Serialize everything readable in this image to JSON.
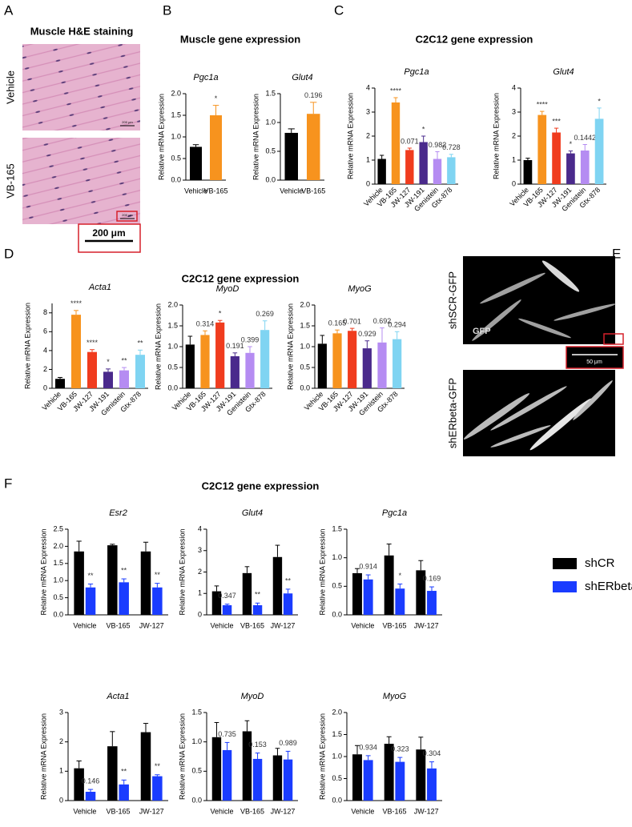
{
  "panels": {
    "A": {
      "label": "A",
      "title": "Muscle H&E staining",
      "row_labels": [
        "Vehicle",
        "VB-165"
      ],
      "scale_bar": "200 μm"
    },
    "B": {
      "label": "B",
      "title": "Muscle gene expression"
    },
    "C": {
      "label": "C",
      "title": "C2C12 gene expression"
    },
    "D": {
      "label": "D",
      "title": "C2C12 gene expression"
    },
    "E": {
      "label": "E",
      "row_labels": [
        "shSCR-GFP",
        "shERbeta-GFP"
      ],
      "channel": "GFP",
      "scale_bar": "50 μm"
    },
    "F": {
      "label": "F",
      "title": "C2C12 gene expression"
    }
  },
  "chart_data": [
    {
      "type": "bar",
      "title": "Pgc1a",
      "y_label": "Relative mRNA Expression",
      "categories": [
        "Vehicle",
        "VB-165"
      ],
      "values": [
        0.77,
        1.5
      ],
      "errors": [
        0.05,
        0.23
      ],
      "colors": [
        "#000000",
        "#f7931e"
      ],
      "annotations": [
        null,
        "*"
      ],
      "ylim": [
        0,
        2
      ],
      "yticks": [
        {
          "value": 0,
          "label": "0.0"
        },
        0.5,
        {
          "value": 1,
          "label": "1.0"
        },
        1.5,
        {
          "value": 2,
          "label": "2.0"
        }
      ]
    },
    {
      "type": "bar",
      "title": "Glut4",
      "y_label": "Relative mRNA Expression",
      "categories": [
        "Vehicle",
        "VB-165"
      ],
      "values": [
        0.82,
        1.15
      ],
      "errors": [
        0.07,
        0.2
      ],
      "colors": [
        "#000000",
        "#f7931e"
      ],
      "annotations": [
        null,
        "0.196"
      ],
      "ylim": [
        0,
        1.5
      ],
      "yticks": [
        {
          "value": 0,
          "label": "0.0"
        },
        0.5,
        {
          "value": 1,
          "label": "1.0"
        },
        1.5
      ]
    },
    {
      "type": "bar",
      "title": "Pgc1a",
      "y_label": "Relative mRNA Expression",
      "categories": [
        "Vehicle",
        "VB-165",
        "JW-127",
        "JW-191",
        "Genistein",
        "Gtx-878"
      ],
      "values": [
        1.05,
        3.4,
        1.42,
        1.75,
        1.05,
        1.12
      ],
      "errors": [
        0.15,
        0.2,
        0.08,
        0.25,
        0.3,
        0.12
      ],
      "colors": [
        "#000000",
        "#f7931e",
        "#f03c1e",
        "#4a2a8c",
        "#b58cf2",
        "#7fd4f2"
      ],
      "annotations": [
        null,
        "****",
        "0.071",
        "*",
        "0.982",
        "0.728"
      ],
      "ylim": [
        0,
        4
      ],
      "yticks": [
        0,
        1,
        2,
        3,
        4
      ]
    },
    {
      "type": "bar",
      "title": "Glut4",
      "y_label": "Relative mRNA Expression",
      "categories": [
        "Vehicle",
        "VB-165",
        "JW-127",
        "JW-191",
        "Genistein",
        "Gtx-878"
      ],
      "values": [
        1.0,
        2.88,
        2.15,
        1.28,
        1.4,
        2.72
      ],
      "errors": [
        0.08,
        0.15,
        0.18,
        0.1,
        0.25,
        0.45
      ],
      "colors": [
        "#000000",
        "#f7931e",
        "#f03c1e",
        "#4a2a8c",
        "#b58cf2",
        "#7fd4f2"
      ],
      "annotations": [
        null,
        "****",
        "***",
        "*",
        "0.1442",
        "*"
      ],
      "ylim": [
        0,
        4
      ],
      "yticks": [
        0,
        1,
        2,
        3,
        4
      ]
    },
    {
      "type": "bar",
      "title": "Acta1",
      "y_label": "Relative mRNA Expression",
      "categories": [
        "Vehicle",
        "VB-165",
        "JW-127",
        "JW-191",
        "Genistein",
        "Gtx-878"
      ],
      "values": [
        1.0,
        7.8,
        3.85,
        1.75,
        1.9,
        3.55
      ],
      "errors": [
        0.15,
        0.45,
        0.25,
        0.3,
        0.3,
        0.5
      ],
      "colors": [
        "#000000",
        "#f7931e",
        "#f03c1e",
        "#4a2a8c",
        "#b58cf2",
        "#7fd4f2"
      ],
      "annotations": [
        null,
        "****",
        "****",
        "*",
        "**",
        "**"
      ],
      "ylim": [
        0,
        9
      ],
      "yticks": [
        0,
        2,
        4,
        6,
        8
      ]
    },
    {
      "type": "bar",
      "title": "MyoD",
      "y_label": "Relative mRNA Expression",
      "categories": [
        "Vehicle",
        "VB-165",
        "JW-127",
        "JW-191",
        "Genistein",
        "Gtx-878"
      ],
      "values": [
        1.05,
        1.28,
        1.58,
        0.77,
        0.85,
        1.4
      ],
      "errors": [
        0.2,
        0.1,
        0.05,
        0.08,
        0.15,
        0.22
      ],
      "colors": [
        "#000000",
        "#f7931e",
        "#f03c1e",
        "#4a2a8c",
        "#b58cf2",
        "#7fd4f2"
      ],
      "annotations": [
        null,
        "0.314",
        "*",
        "0.191",
        "0.399",
        "0.269"
      ],
      "ylim": [
        0,
        2
      ],
      "yticks": [
        {
          "value": 0,
          "label": "0.0"
        },
        0.5,
        {
          "value": 1,
          "label": "1.0"
        },
        1.5,
        {
          "value": 2,
          "label": "2.0"
        }
      ]
    },
    {
      "type": "bar",
      "title": "MyoG",
      "y_label": "Relative mRNA Expression",
      "categories": [
        "Vehicle",
        "VB-165",
        "JW-127",
        "JW-191",
        "Genistein",
        "Gtx-878"
      ],
      "values": [
        1.07,
        1.32,
        1.38,
        0.96,
        1.1,
        1.18
      ],
      "errors": [
        0.2,
        0.08,
        0.06,
        0.18,
        0.35,
        0.18
      ],
      "colors": [
        "#000000",
        "#f7931e",
        "#f03c1e",
        "#4a2a8c",
        "#b58cf2",
        "#7fd4f2"
      ],
      "annotations": [
        null,
        "0.165",
        "0.701",
        "0.929",
        "0.692",
        "0.294"
      ],
      "ylim": [
        0,
        2
      ],
      "yticks": [
        {
          "value": 0,
          "label": "0.0"
        },
        0.5,
        {
          "value": 1,
          "label": "1.0"
        },
        1.5,
        {
          "value": 2,
          "label": "2.0"
        }
      ]
    },
    {
      "type": "bar",
      "title": "Esr2",
      "y_label": "Relative mRNA Expression",
      "categories": [
        "Vehicle",
        "VB-165",
        "JW-127"
      ],
      "series": [
        {
          "name": "shCR",
          "color": "#000000",
          "values": [
            1.85,
            2.03,
            1.85
          ],
          "errors": [
            0.3,
            0.03,
            0.27
          ]
        },
        {
          "name": "shERbeta",
          "color": "#1a3cff",
          "values": [
            0.8,
            0.95,
            0.8
          ],
          "errors": [
            0.1,
            0.1,
            0.12
          ]
        }
      ],
      "annotations": [
        "**",
        "**",
        "**"
      ],
      "ylim": [
        0,
        2.5
      ],
      "yticks": [
        {
          "value": 0,
          "label": "0.0"
        },
        0.5,
        {
          "value": 1,
          "label": "1.0"
        },
        1.5,
        {
          "value": 2,
          "label": "2.0"
        },
        2.5
      ]
    },
    {
      "type": "bar",
      "title": "Glut4",
      "y_label": "Relative mRNA Expression",
      "categories": [
        "Vehicle",
        "VB-165",
        "JW-127"
      ],
      "series": [
        {
          "name": "shCR",
          "color": "#000000",
          "values": [
            1.1,
            1.95,
            2.7
          ],
          "errors": [
            0.25,
            0.3,
            0.55
          ]
        },
        {
          "name": "shERbeta",
          "color": "#1a3cff",
          "values": [
            0.45,
            0.45,
            1.0
          ],
          "errors": [
            0.05,
            0.1,
            0.2
          ]
        }
      ],
      "annotations": [
        "0.347",
        "**",
        "**"
      ],
      "ylim": [
        0,
        4
      ],
      "yticks": [
        0,
        1,
        2,
        3,
        4
      ]
    },
    {
      "type": "bar",
      "title": "Pgc1a",
      "y_label": "Relative mRNA Expression",
      "categories": [
        "Vehicle",
        "VB-165",
        "JW-127"
      ],
      "series": [
        {
          "name": "shCR",
          "color": "#000000",
          "values": [
            0.73,
            1.04,
            0.78
          ],
          "errors": [
            0.08,
            0.2,
            0.17
          ]
        },
        {
          "name": "shERbeta",
          "color": "#1a3cff",
          "values": [
            0.62,
            0.46,
            0.42
          ],
          "errors": [
            0.08,
            0.08,
            0.07
          ]
        }
      ],
      "annotations": [
        "0.914",
        "*",
        "0.169"
      ],
      "ylim": [
        0,
        1.5
      ],
      "yticks": [
        {
          "value": 0,
          "label": "0.0"
        },
        0.5,
        {
          "value": 1,
          "label": "1.0"
        },
        1.5
      ]
    },
    {
      "type": "bar",
      "title": "Acta1",
      "y_label": "Relative mRNA Expression",
      "categories": [
        "Vehicle",
        "VB-165",
        "JW-127"
      ],
      "series": [
        {
          "name": "shCR",
          "color": "#000000",
          "values": [
            1.1,
            1.85,
            2.33
          ],
          "errors": [
            0.25,
            0.5,
            0.3
          ]
        },
        {
          "name": "shERbeta",
          "color": "#1a3cff",
          "values": [
            0.3,
            0.55,
            0.83
          ],
          "errors": [
            0.08,
            0.15,
            0.05
          ]
        }
      ],
      "annotations": [
        "0.146",
        "**",
        "**"
      ],
      "ylim": [
        0,
        3
      ],
      "yticks": [
        0,
        1,
        2,
        3
      ]
    },
    {
      "type": "bar",
      "title": "MyoD",
      "y_label": "Relative mRNA Expression",
      "categories": [
        "Vehicle",
        "VB-165",
        "JW-127"
      ],
      "series": [
        {
          "name": "shCR",
          "color": "#000000",
          "values": [
            1.08,
            1.18,
            0.77
          ],
          "errors": [
            0.25,
            0.18,
            0.12
          ]
        },
        {
          "name": "shERbeta",
          "color": "#1a3cff",
          "values": [
            0.86,
            0.71,
            0.7
          ],
          "errors": [
            0.13,
            0.1,
            0.14
          ]
        }
      ],
      "annotations": [
        "0.735",
        "0.153",
        "0.989"
      ],
      "ylim": [
        0,
        1.5
      ],
      "yticks": [
        {
          "value": 0,
          "label": "0.0"
        },
        0.5,
        {
          "value": 1,
          "label": "1.0"
        },
        1.5
      ]
    },
    {
      "type": "bar",
      "title": "MyoG",
      "y_label": "Relative mRNA Expression",
      "categories": [
        "Vehicle",
        "VB-165",
        "JW-127"
      ],
      "series": [
        {
          "name": "shCR",
          "color": "#000000",
          "values": [
            1.05,
            1.29,
            1.16
          ],
          "errors": [
            0.2,
            0.16,
            0.28
          ]
        },
        {
          "name": "shERbeta",
          "color": "#1a3cff",
          "values": [
            0.92,
            0.88,
            0.73
          ],
          "errors": [
            0.1,
            0.1,
            0.15
          ]
        }
      ],
      "annotations": [
        "0.934",
        "0.323",
        "0.304"
      ],
      "ylim": [
        0,
        2
      ],
      "yticks": [
        {
          "value": 0,
          "label": "0.0"
        },
        0.5,
        {
          "value": 1,
          "label": "1.0"
        },
        1.5,
        {
          "value": 2,
          "label": "2.0"
        }
      ]
    }
  ]
}
